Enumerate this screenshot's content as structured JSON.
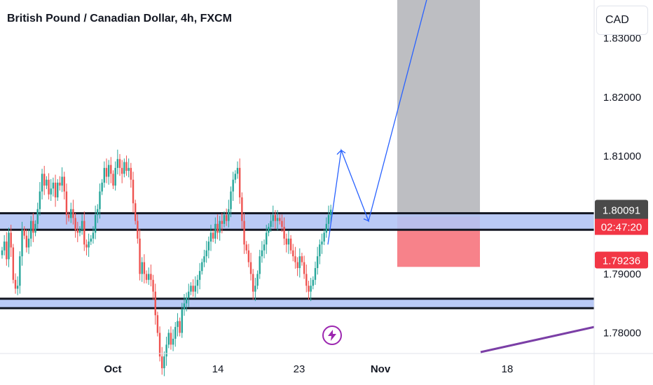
{
  "header": {
    "title": "British Pound / Canadian Dollar, 4h, FXCM"
  },
  "currency_button": {
    "label": "CAD"
  },
  "colors": {
    "up": "#26a69a",
    "down": "#ef5350",
    "zone_fill": "#b2c4f5",
    "zone_border": "#131722",
    "target_box": "#bdbec2",
    "stop_box": "#f7828a",
    "arrow": "#2962ff",
    "trendline": "#7b3fa6",
    "price_badge": "#4a4a4a",
    "stop_badge": "#f23645"
  },
  "chart_data": {
    "type": "candlestick",
    "title": "British Pound / Canadian Dollar, 4h, FXCM",
    "x_tick_labels": [
      "Oct",
      "14",
      "23",
      "Nov",
      "18"
    ],
    "y_tick_labels": [
      "1.78000",
      "1.79000",
      "1.80000",
      "1.81000",
      "1.82000",
      "1.83000"
    ],
    "ylim": [
      1.7765,
      1.8365
    ],
    "price_badge": {
      "value": "1.80091",
      "countdown": "02:47:20"
    },
    "stop_badge": {
      "value": "1.79236"
    },
    "resistance_zone": [
      1.7975,
      1.8003
    ],
    "support_zone": [
      1.7842,
      1.7858
    ],
    "target_box": {
      "from": 1.7992,
      "to": 1.8365
    },
    "stop_box": {
      "from": 1.7912,
      "to": 1.7997
    },
    "projected_path_prices": [
      1.795,
      1.811,
      1.799,
      1.837
    ],
    "trendline_prices": [
      1.7765,
      1.781
    ],
    "series_close": [
      1.794,
      1.7955,
      1.7925,
      1.797,
      1.7945,
      1.789,
      1.7875,
      1.788,
      1.793,
      1.7975,
      1.7965,
      1.7945,
      1.796,
      1.799,
      1.797,
      1.7985,
      1.801,
      1.804,
      1.807,
      1.805,
      1.806,
      1.8035,
      1.8045,
      1.8055,
      1.803,
      1.8055,
      1.805,
      1.8065,
      1.804,
      1.8,
      1.7995,
      1.801,
      1.7995,
      1.7975,
      1.797,
      1.7975,
      1.799,
      1.795,
      1.7945,
      1.7955,
      1.796,
      1.797,
      1.8,
      1.801,
      1.804,
      1.8055,
      1.808,
      1.8065,
      1.8085,
      1.807,
      1.805,
      1.808,
      1.8095,
      1.808,
      1.807,
      1.809,
      1.8075,
      1.808,
      1.806,
      1.802,
      1.799,
      1.796,
      1.79,
      1.792,
      1.79,
      1.789,
      1.79,
      1.789,
      1.787,
      1.783,
      1.78,
      1.776,
      1.774,
      1.776,
      1.778,
      1.78,
      1.778,
      1.779,
      1.781,
      1.782,
      1.78,
      1.784,
      1.785,
      1.786,
      1.787,
      1.788,
      1.787,
      1.788,
      1.789,
      1.7905,
      1.792,
      1.793,
      1.794,
      1.7955,
      1.797,
      1.796,
      1.7985,
      1.797,
      1.799,
      1.7985,
      1.8,
      1.799,
      1.801,
      1.804,
      1.806,
      1.807,
      1.808,
      1.803,
      1.799,
      1.795,
      1.794,
      1.792,
      1.79,
      1.787,
      1.788,
      1.79,
      1.793,
      1.794,
      1.795,
      1.797,
      1.798,
      1.799,
      1.8,
      1.799,
      1.7995,
      1.799,
      1.798,
      1.796,
      1.795,
      1.796,
      1.794,
      1.793,
      1.792,
      1.791,
      1.793,
      1.792,
      1.79,
      1.788,
      1.787,
      1.788,
      1.789,
      1.791,
      1.793,
      1.795,
      1.7955,
      1.797,
      1.7985,
      1.8,
      1.8009
    ]
  }
}
